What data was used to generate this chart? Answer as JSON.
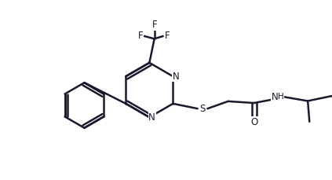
{
  "bg_color": "#ffffff",
  "bond_color": "#1a1a2e",
  "text_color": "#1a1a2e",
  "line_width": 1.8,
  "font_size": 8.5,
  "figsize": [
    4.23,
    2.29
  ],
  "dpi": 100,
  "xlim": [
    0,
    10
  ],
  "ylim": [
    0,
    5.4
  ]
}
